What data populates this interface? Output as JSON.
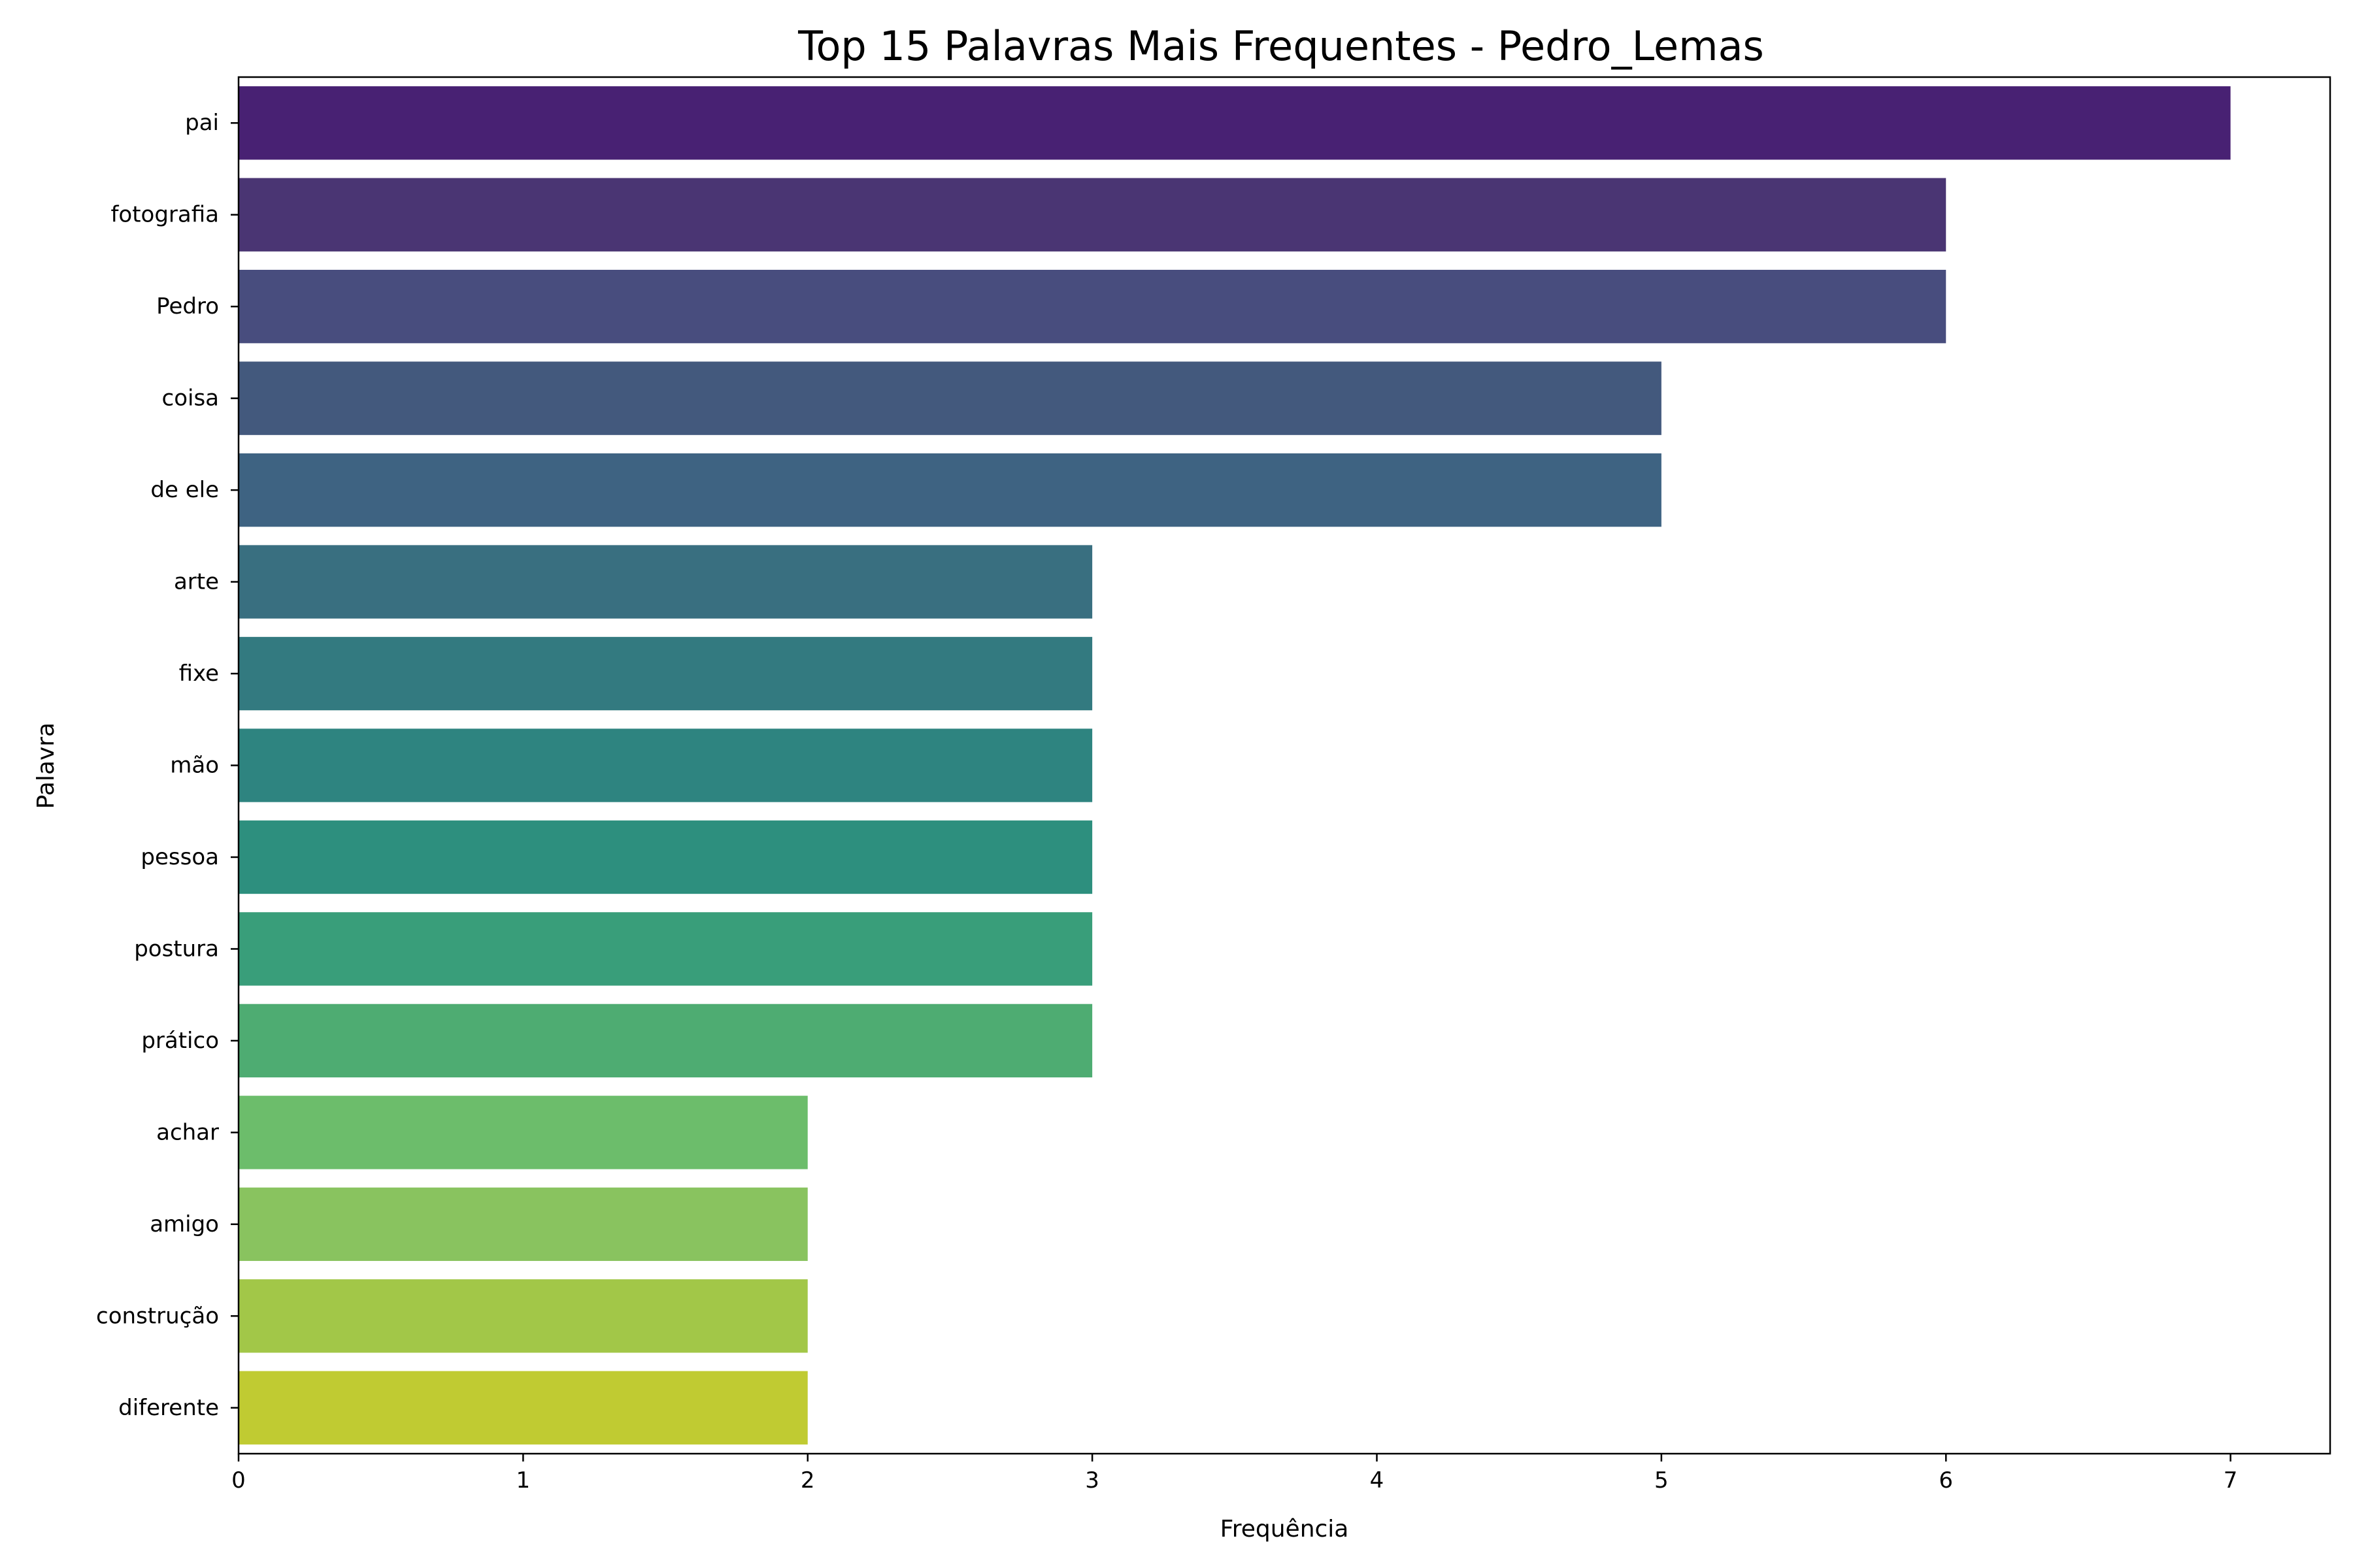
{
  "chart_data": {
    "type": "bar",
    "orientation": "horizontal",
    "title": "Top 15 Palavras Mais Frequentes - Pedro_Lemas",
    "xlabel": "Frequência",
    "ylabel": "Palavra",
    "xlim": [
      0,
      7.35
    ],
    "xticks": [
      0,
      1,
      2,
      3,
      4,
      5,
      6,
      7
    ],
    "grid": false,
    "categories": [
      "pai",
      "fotografia",
      "Pedro",
      "coisa",
      "de ele",
      "arte",
      "fixe",
      "mão",
      "pessoa",
      "postura",
      "prático",
      "achar",
      "amigo",
      "construção",
      "diferente"
    ],
    "values": [
      7,
      6,
      6,
      5,
      5,
      3,
      3,
      3,
      3,
      3,
      3,
      2,
      2,
      2,
      2
    ],
    "colors": [
      "#482173",
      "#4a3573",
      "#484d7e",
      "#43597d",
      "#3e6382",
      "#396f80",
      "#337a80",
      "#2e8480",
      "#2d8f7e",
      "#399e7a",
      "#4eac72",
      "#6cbd6b",
      "#89c35f",
      "#a2c748",
      "#c0cb32"
    ],
    "colormap": "viridis"
  }
}
